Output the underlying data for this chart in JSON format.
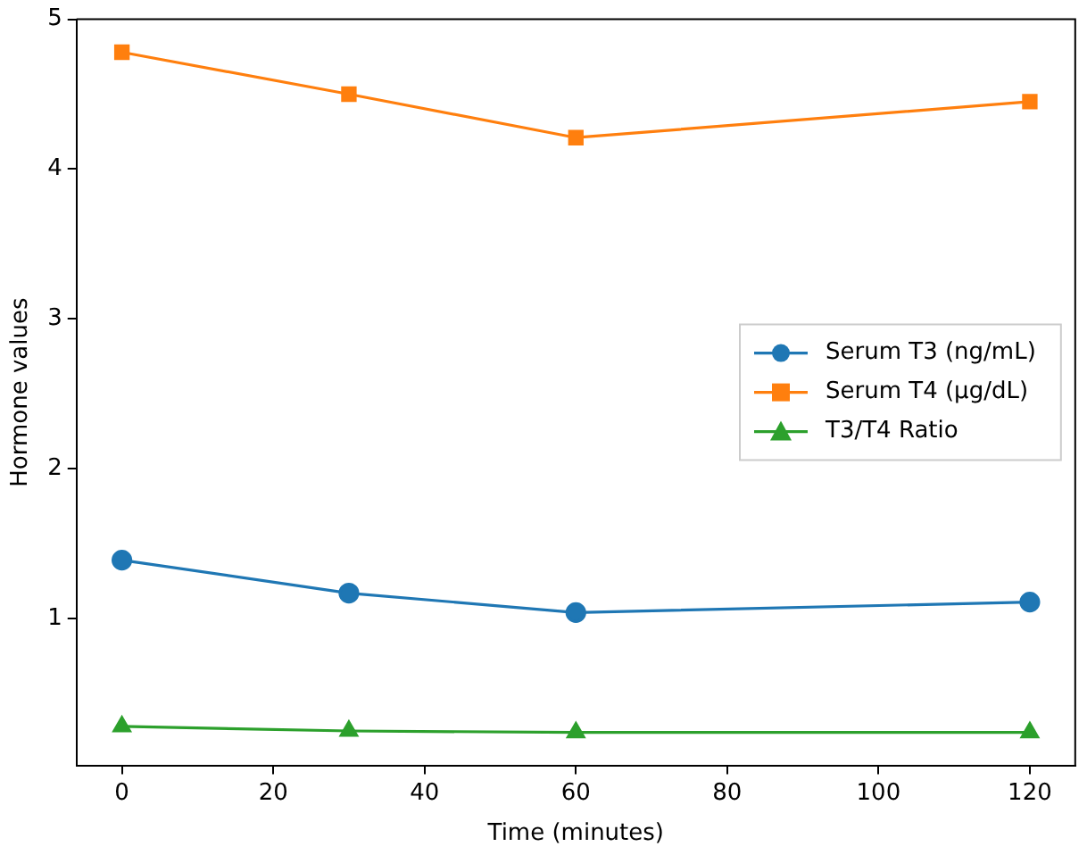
{
  "chart_data": {
    "type": "line",
    "xlabel": "Time (minutes)",
    "ylabel": "Hormone values",
    "x": [
      0,
      30,
      60,
      120
    ],
    "series": [
      {
        "name": "Serum T3 (ng/mL)",
        "color": "#1f77b4",
        "marker": "circle",
        "values": [
          1.39,
          1.17,
          1.04,
          1.11
        ]
      },
      {
        "name": "Serum T4 (μg/dL)",
        "color": "#ff7f0e",
        "marker": "square",
        "values": [
          4.78,
          4.5,
          4.21,
          4.45
        ]
      },
      {
        "name": "T3/T4 Ratio",
        "color": "#2ca02c",
        "marker": "triangle",
        "values": [
          0.28,
          0.25,
          0.24,
          0.24
        ]
      }
    ],
    "xlim": [
      -6,
      126
    ],
    "xticks": [
      0,
      20,
      40,
      60,
      80,
      100,
      120
    ],
    "ylim": [
      0.02,
      5
    ],
    "yticks": [
      1,
      2,
      3,
      4,
      5
    ],
    "grid": false,
    "legend": "center right"
  }
}
